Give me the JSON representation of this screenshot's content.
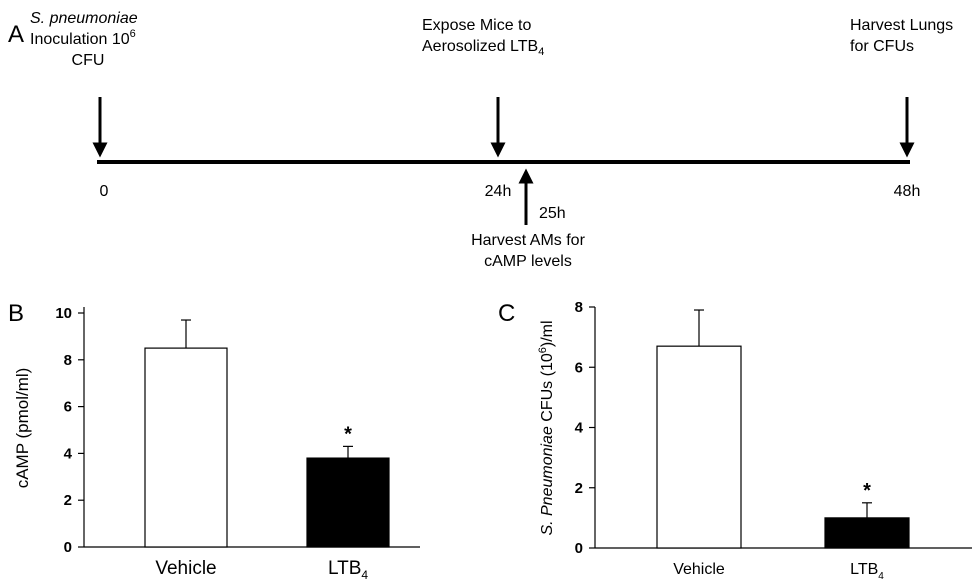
{
  "panel_a": {
    "label": "A",
    "timeline_start_label": "0",
    "timeline_mid_label": "24h",
    "timeline_end_label": "48h",
    "harvest_am_time": "25h",
    "step1_name": "S. pneumoniae",
    "step1_line2": "Inoculation 10",
    "step1_line2_sup": "6",
    "step1_line3": "CFU",
    "step2_line1": "Expose Mice to",
    "step2_line2": "Aerosolized LTB",
    "step2_line2_sub": "4",
    "step3_line1": "Harvest Lungs",
    "step3_line2": "for CFUs",
    "harvest_am_line1": "Harvest AMs for",
    "harvest_am_line2": "cAMP levels"
  },
  "chart_data": [
    {
      "panel": "B",
      "type": "bar",
      "categories": [
        "Vehicle",
        "LTB4"
      ],
      "category_main": [
        "Vehicle",
        "LTB"
      ],
      "category_sub": [
        "",
        "4"
      ],
      "values": [
        8.5,
        3.8
      ],
      "errors": [
        1.2,
        0.5
      ],
      "bar_colors": [
        "#ffffff",
        "#000000"
      ],
      "significance": [
        "",
        "*"
      ],
      "ylabel": "cAMP (pmol/ml)",
      "ylim": [
        0,
        10
      ],
      "yticks": [
        0,
        2,
        4,
        6,
        8,
        10
      ],
      "grid": false
    },
    {
      "panel": "C",
      "type": "bar",
      "categories": [
        "Vehicle",
        "LTB4"
      ],
      "category_main": [
        "Vehicle",
        "LTB"
      ],
      "category_sub": [
        "",
        "4"
      ],
      "values": [
        6.7,
        1.0
      ],
      "errors": [
        1.2,
        0.5
      ],
      "bar_colors": [
        "#ffffff",
        "#000000"
      ],
      "significance": [
        "",
        "*"
      ],
      "ylabel_italic": "S. Pneumoniae",
      "ylabel_rest": " CFUs (10",
      "ylabel_sup": "6",
      "ylabel_end": ")/ml",
      "ylim": [
        0,
        8
      ],
      "yticks": [
        0,
        2,
        4,
        6,
        8
      ],
      "grid": false
    }
  ]
}
